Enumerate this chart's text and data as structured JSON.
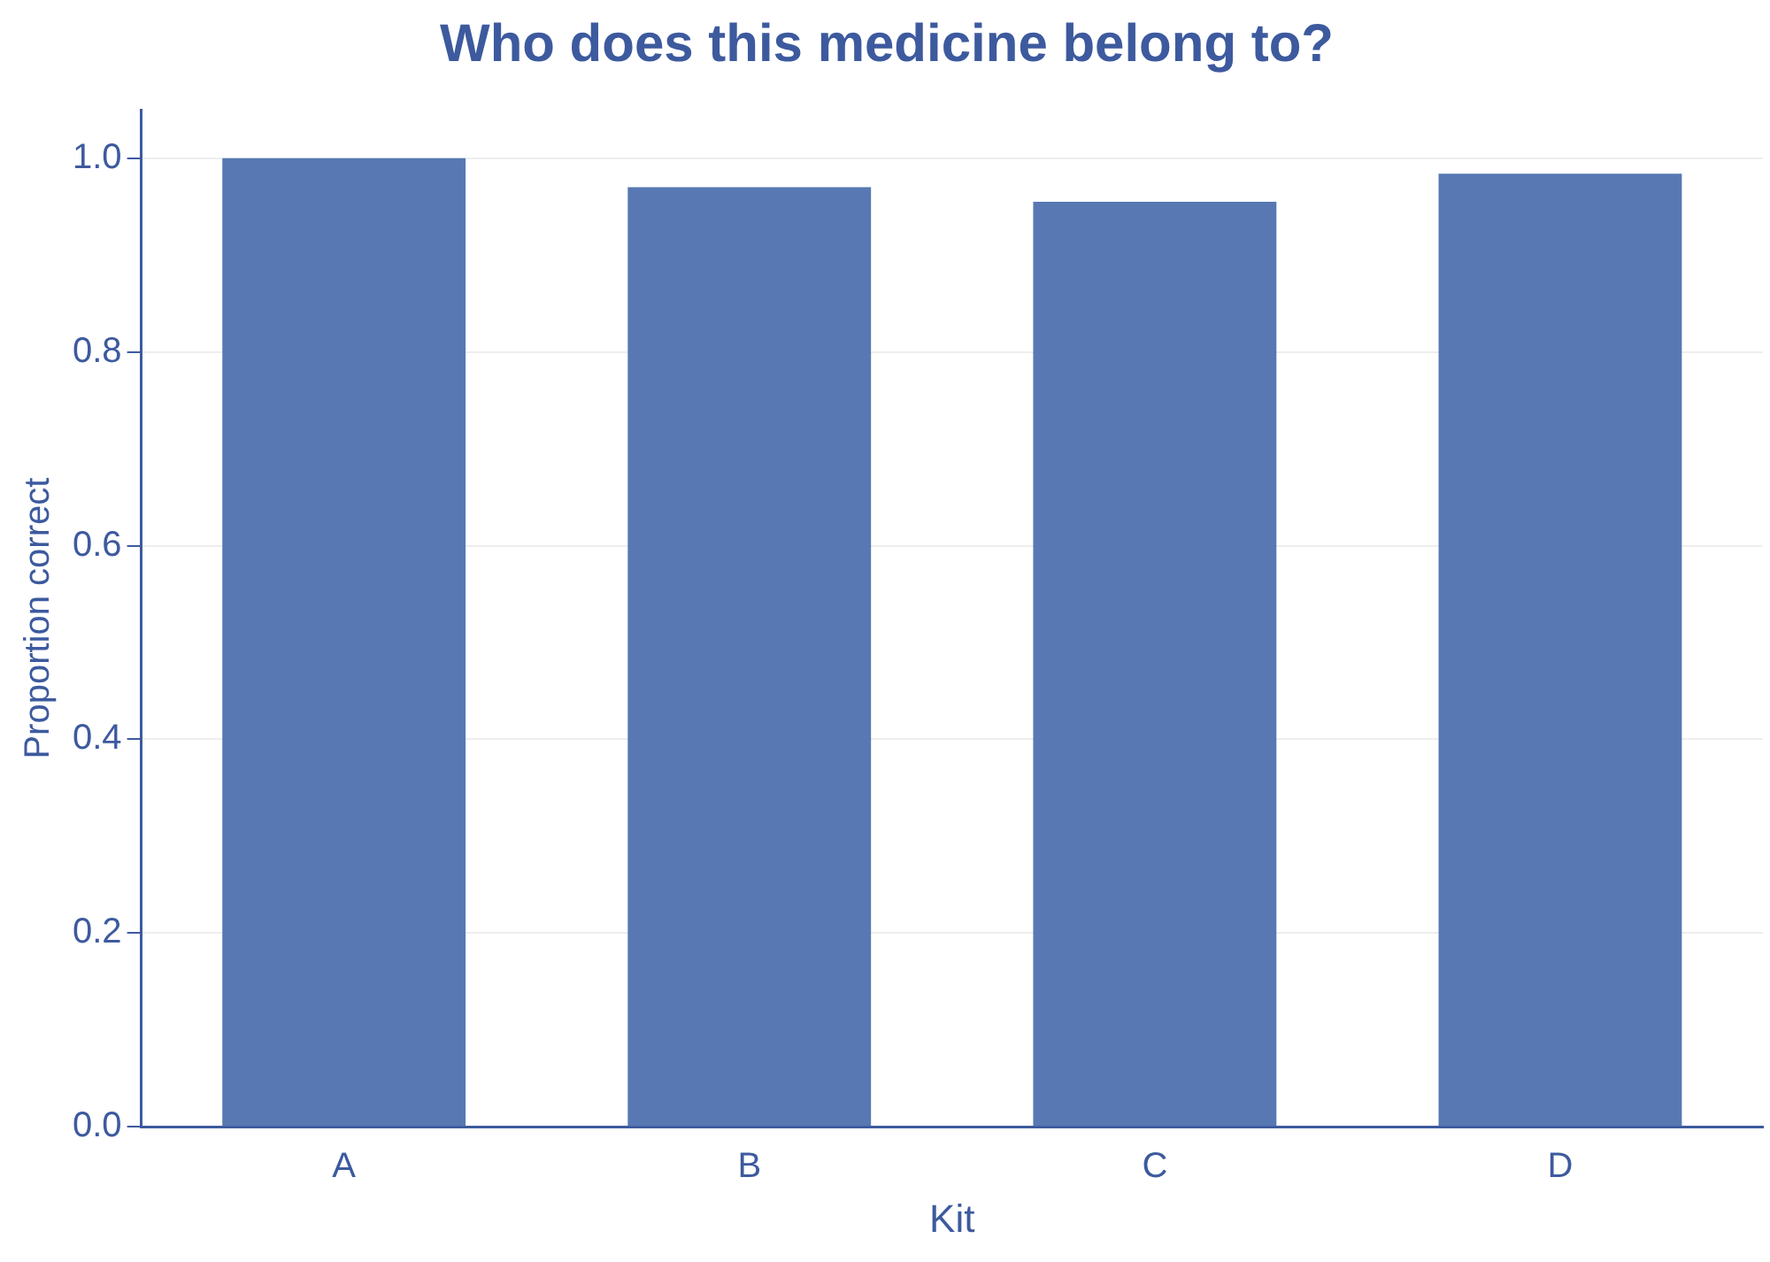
{
  "chart_data": {
    "type": "bar",
    "title": "Who does this medicine belong to?",
    "xlabel": "Kit",
    "ylabel": "Proportion correct",
    "categories": [
      "A",
      "B",
      "C",
      "D"
    ],
    "series": [
      {
        "color": "#5778b3",
        "values": [
          1.0,
          0.97,
          0.955,
          0.984
        ]
      }
    ],
    "ylim": [
      0,
      1.05
    ],
    "yticks": [
      {
        "value": 0,
        "label": "0.0"
      },
      {
        "value": 0.2,
        "label": "0.2"
      },
      {
        "value": 0.4,
        "label": "0.4"
      },
      {
        "value": 0.6,
        "label": "0.6"
      },
      {
        "value": 0.8,
        "label": "0.8"
      },
      {
        "value": 1,
        "label": "1.0"
      }
    ],
    "grid": "y",
    "legend": false
  }
}
